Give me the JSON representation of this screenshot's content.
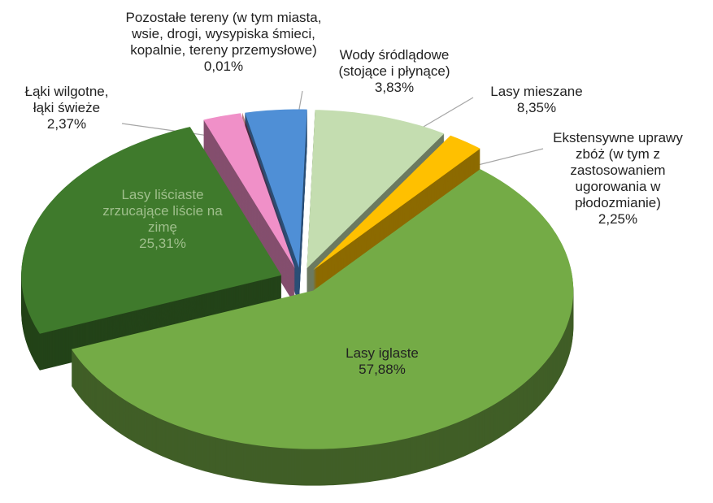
{
  "chart_data": {
    "type": "pie3d",
    "categories": [
      "Wody śródlądowe (stojące i płynące)",
      "Lasy mieszane",
      "Ekstensywne uprawy zbóż (w tym z zastosowaniem ugorowania w płodozmianie)",
      "Lasy iglaste",
      "Lasy liściaste zrzucające liście na zimę",
      "Łąki wilgotne, łąki świeże",
      "Pozostałe tereny (w tym miasta, wsie, drogi, wysypiska śmieci, kopalnie, tereny przemysłowe)"
    ],
    "values": [
      3.83,
      8.35,
      2.25,
      57.88,
      25.31,
      2.37,
      0.01
    ],
    "value_labels": [
      "3,83%",
      "8,35%",
      "2,25%",
      "57,88%",
      "25,31%",
      "2,37%",
      "0,01%"
    ],
    "colors": [
      "#4f8fd6",
      "#c4ddb0",
      "#ffc000",
      "#74ab46",
      "#3f7a2c",
      "#f090c8",
      "#c00000"
    ]
  }
}
